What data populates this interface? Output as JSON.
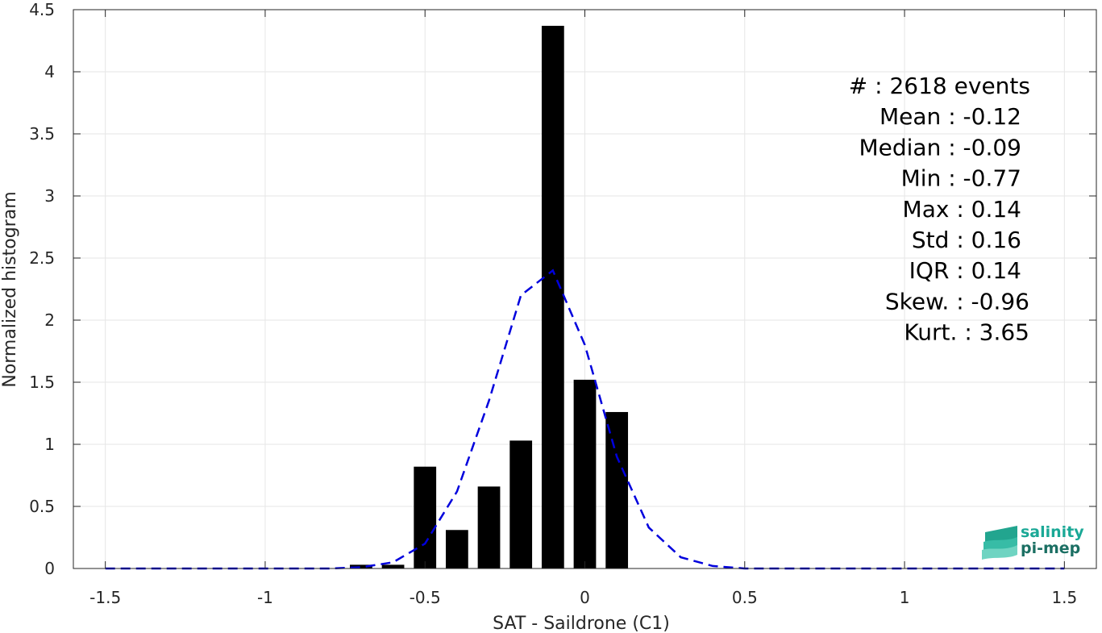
{
  "chart_data": {
    "type": "bar",
    "xlabel": "SAT - Saildrone (C1)",
    "ylabel": "Normalized histogram",
    "xlim": [
      -1.6,
      1.6
    ],
    "ylim": [
      0,
      4.5
    ],
    "xticks": [
      -1.5,
      -1,
      -0.5,
      0,
      0.5,
      1,
      1.5
    ],
    "xtick_labels": [
      "-1.5",
      "-1",
      "-0.5",
      "0",
      "0.5",
      "1",
      "1.5"
    ],
    "yticks": [
      0,
      0.5,
      1,
      1.5,
      2,
      2.5,
      3,
      3.5,
      4,
      4.5
    ],
    "ytick_labels": [
      "0",
      "0.5",
      "1",
      "1.5",
      "2",
      "2.5",
      "3",
      "3.5",
      "4",
      "4.5"
    ],
    "grid": true,
    "bar_width": 0.07,
    "bar_color": "#000000",
    "bars": {
      "x": [
        -0.7,
        -0.6,
        -0.5,
        -0.4,
        -0.3,
        -0.2,
        -0.1,
        0.0,
        0.1
      ],
      "values": [
        0.03,
        0.03,
        0.82,
        0.31,
        0.66,
        1.03,
        4.37,
        1.52,
        1.26
      ]
    },
    "fit_curve": {
      "style": "dashed",
      "color": "#0000dd",
      "x": [
        -1.5,
        -1.4,
        -1.3,
        -1.2,
        -1.1,
        -1.0,
        -0.9,
        -0.8,
        -0.7,
        -0.6,
        -0.5,
        -0.4,
        -0.3,
        -0.2,
        -0.1,
        0.0,
        0.1,
        0.2,
        0.3,
        0.4,
        0.5,
        0.6,
        0.7,
        0.8,
        0.9,
        1.0,
        1.1,
        1.2,
        1.3,
        1.4,
        1.5
      ],
      "y": [
        0,
        0,
        0,
        0,
        0,
        0,
        0,
        0,
        0.01,
        0.05,
        0.2,
        0.62,
        1.35,
        2.2,
        2.4,
        1.8,
        0.9,
        0.33,
        0.09,
        0.02,
        0,
        0,
        0,
        0,
        0,
        0,
        0,
        0,
        0,
        0,
        0
      ]
    },
    "stats_lines": [
      "#  : 2618 events",
      "Mean : -0.12",
      "Median : -0.09",
      "Min : -0.77",
      "Max : 0.14",
      "Std : 0.16",
      "IQR : 0.14",
      "Skew. : -0.96",
      "Kurt. : 3.65"
    ]
  },
  "logo": {
    "line1": "salinity",
    "line2": "pi-mep",
    "color1": "#1aa896",
    "color2": "#1b6f63"
  }
}
